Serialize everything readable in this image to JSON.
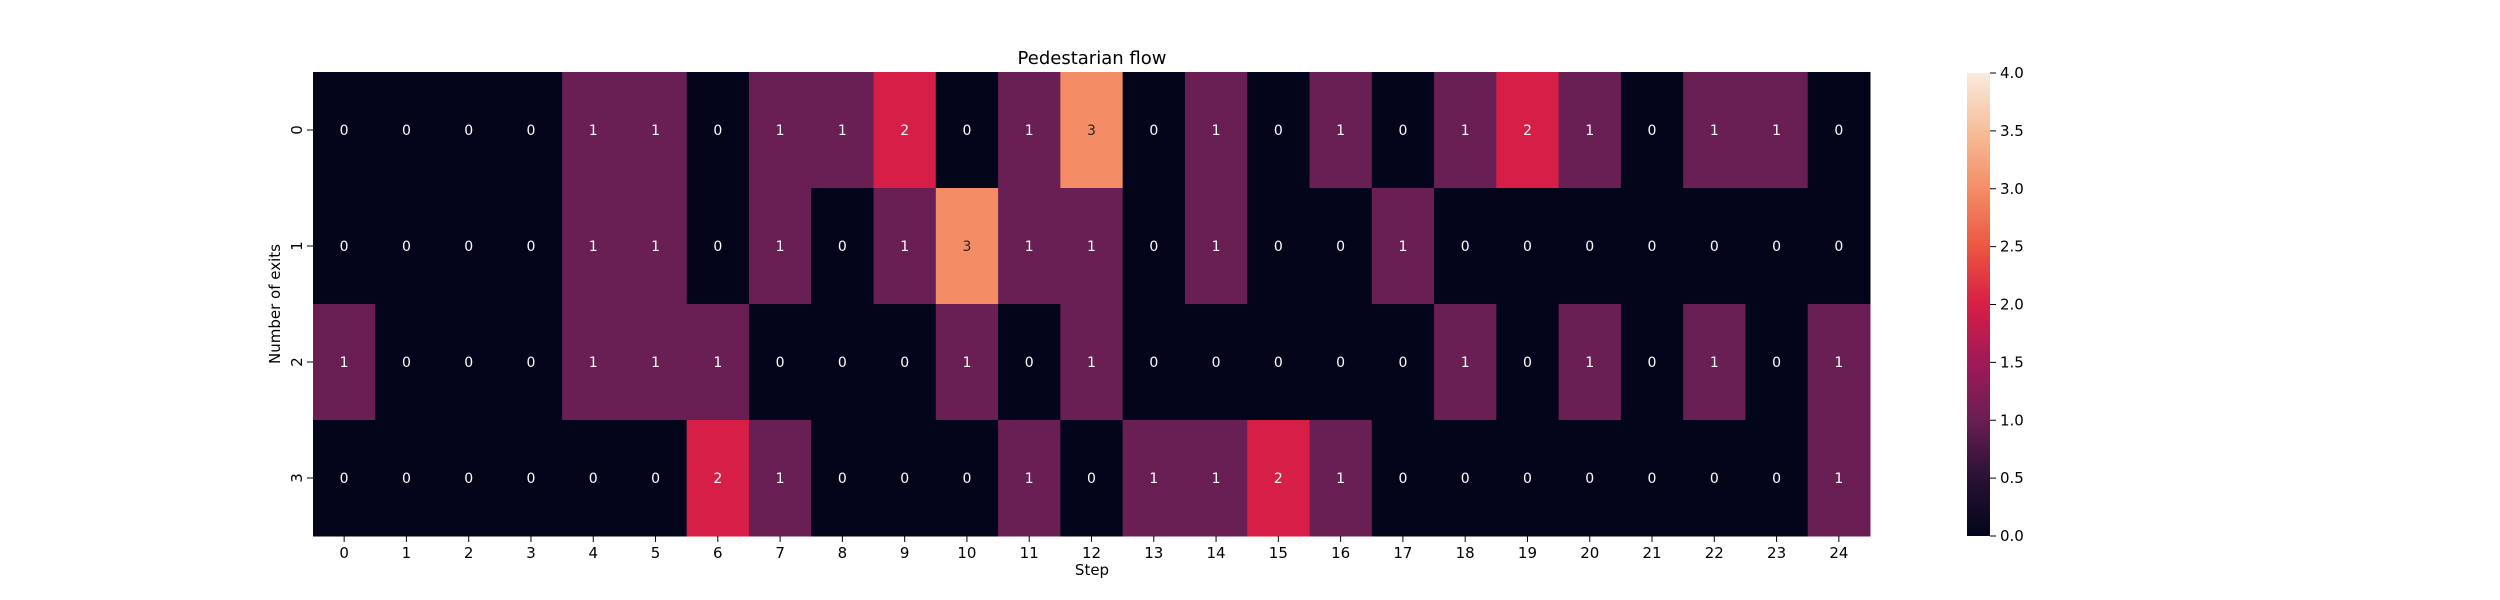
{
  "chart_data": {
    "type": "heatmap",
    "title": "Pedestarian flow",
    "xlabel": "Step",
    "ylabel": "Number of exits",
    "x_categories": [
      "0",
      "1",
      "2",
      "3",
      "4",
      "5",
      "6",
      "7",
      "8",
      "9",
      "10",
      "11",
      "12",
      "13",
      "14",
      "15",
      "16",
      "17",
      "18",
      "19",
      "20",
      "21",
      "22",
      "23",
      "24"
    ],
    "y_categories": [
      "0",
      "1",
      "2",
      "3"
    ],
    "values": [
      [
        0,
        0,
        0,
        0,
        1,
        1,
        0,
        1,
        1,
        2,
        0,
        1,
        3,
        0,
        1,
        0,
        1,
        0,
        1,
        2,
        1,
        0,
        1,
        1,
        0
      ],
      [
        0,
        0,
        0,
        0,
        1,
        1,
        0,
        1,
        0,
        1,
        3,
        1,
        1,
        0,
        1,
        0,
        0,
        1,
        0,
        0,
        0,
        0,
        0,
        0,
        0
      ],
      [
        1,
        0,
        0,
        0,
        1,
        1,
        1,
        0,
        0,
        0,
        1,
        0,
        1,
        0,
        0,
        0,
        0,
        0,
        1,
        0,
        1,
        0,
        1,
        0,
        1
      ],
      [
        0,
        0,
        0,
        0,
        0,
        0,
        2,
        1,
        0,
        0,
        0,
        1,
        0,
        1,
        1,
        2,
        1,
        0,
        0,
        0,
        0,
        0,
        0,
        0,
        1
      ]
    ],
    "annotated": true,
    "colorbar": {
      "min": 0,
      "max": 4,
      "ticks": [
        "0.0",
        "0.5",
        "1.0",
        "1.5",
        "2.0",
        "2.5",
        "3.0",
        "3.5",
        "4.0"
      ],
      "colormap": "rocket"
    },
    "grid": false,
    "legend": "none"
  }
}
